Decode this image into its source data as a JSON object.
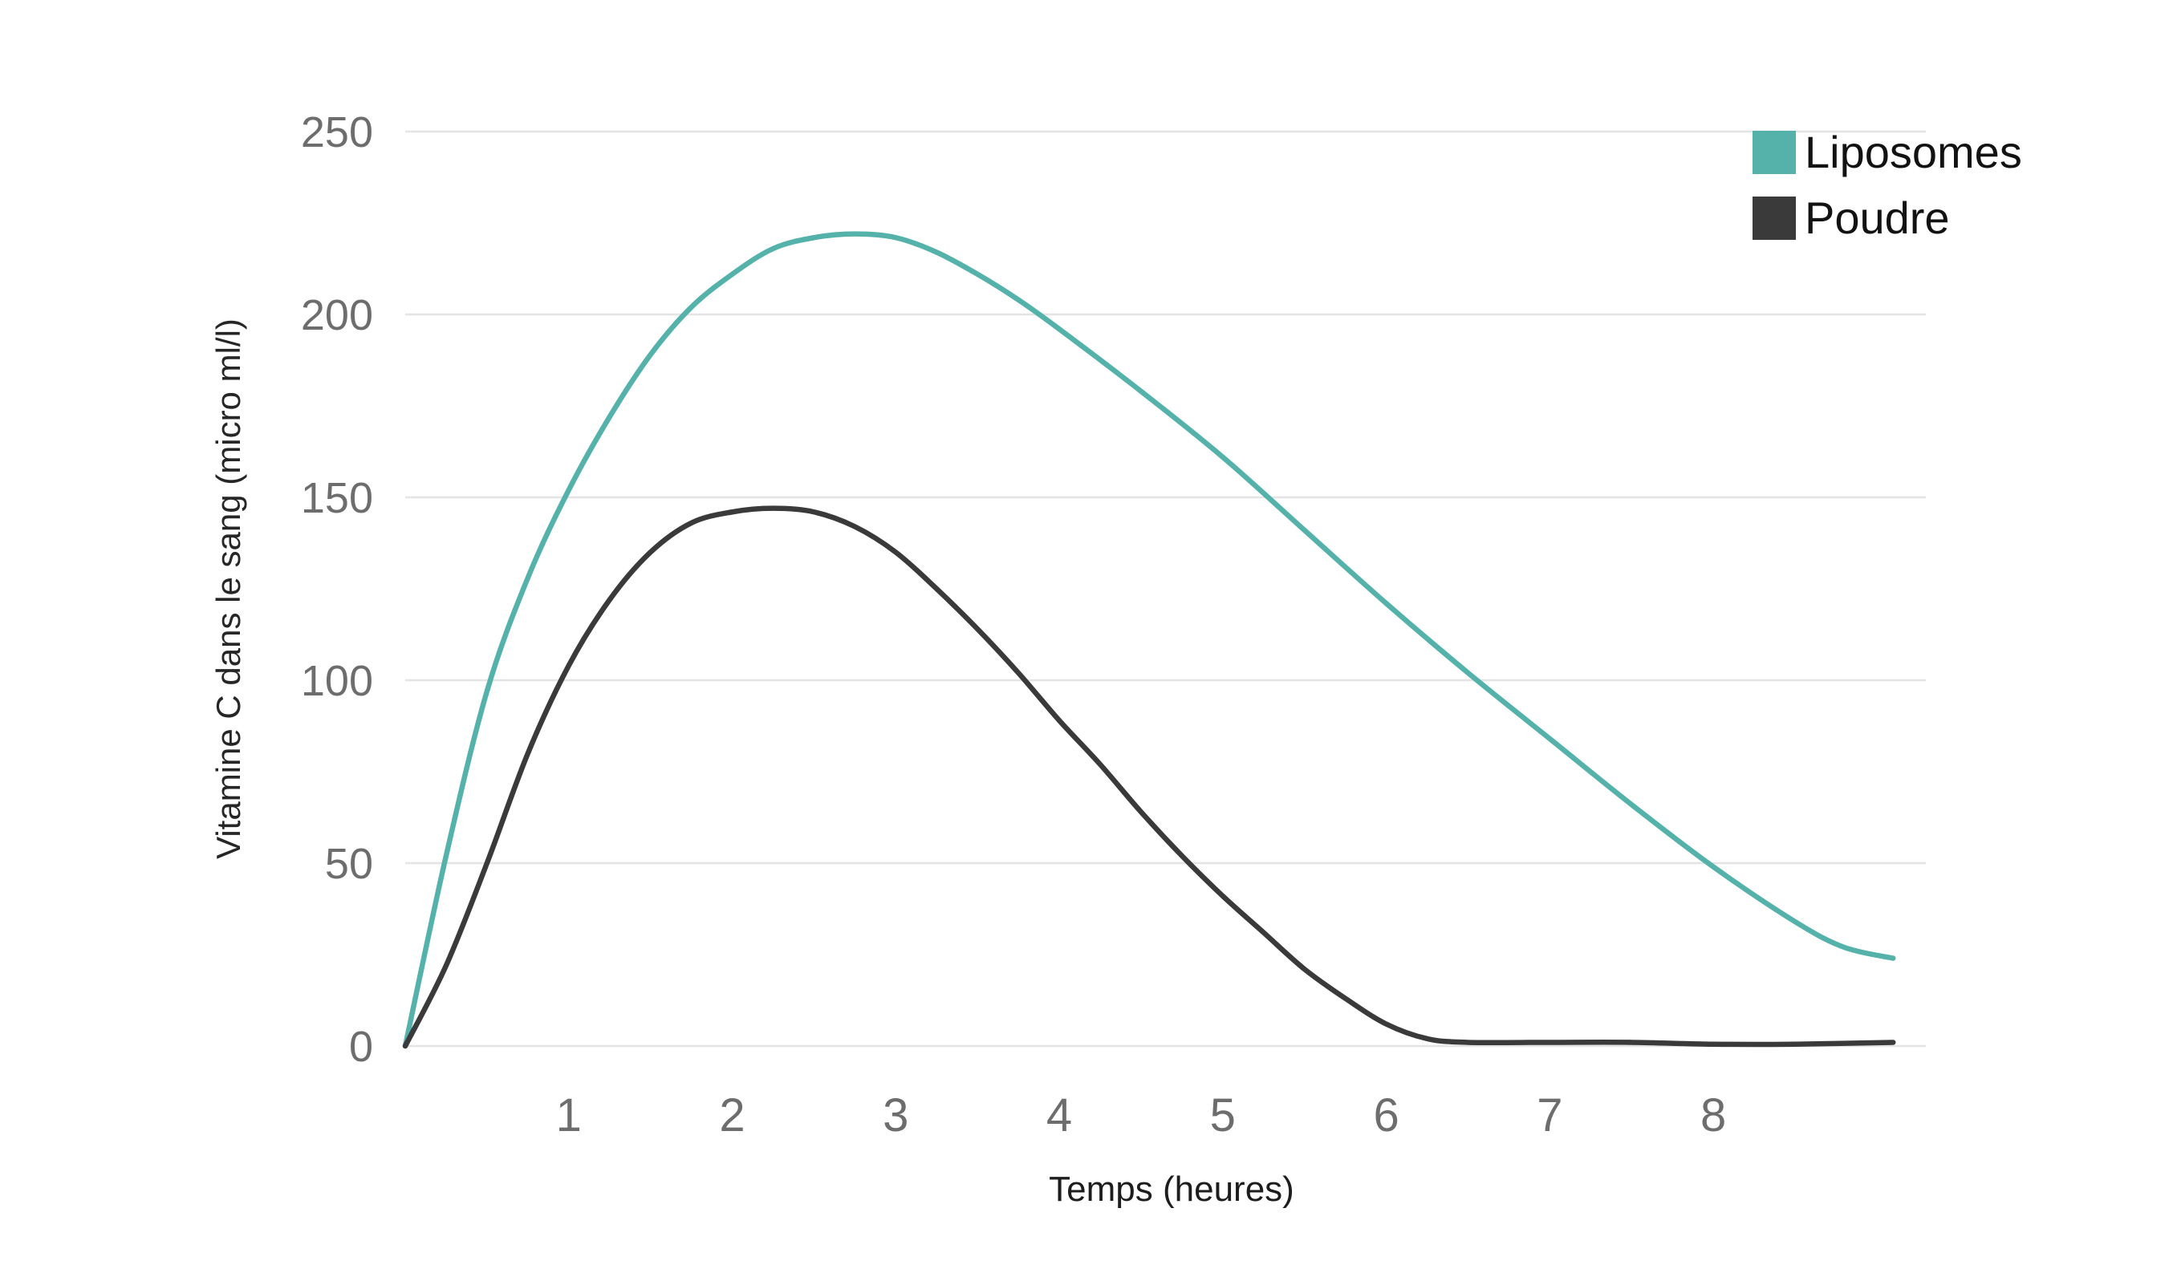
{
  "chart_data": {
    "type": "line",
    "title": "",
    "xlabel": "Temps (heures)",
    "ylabel": "Vitamine C dans le sang (micro ml/l)",
    "xlim": [
      0,
      9.3
    ],
    "ylim": [
      0,
      250
    ],
    "x_ticks": [
      1,
      2,
      3,
      4,
      5,
      6,
      7,
      8
    ],
    "y_ticks": [
      0,
      50,
      100,
      150,
      200,
      250
    ],
    "grid": "horizontal",
    "legend_position": "top-right",
    "series": [
      {
        "name": "Liposomes",
        "color": "#55b2ab",
        "x": [
          0,
          0.25,
          0.5,
          0.75,
          1,
          1.25,
          1.5,
          1.75,
          2,
          2.25,
          2.5,
          2.75,
          3,
          3.25,
          3.5,
          3.75,
          4,
          4.5,
          5,
          5.5,
          6,
          6.5,
          7,
          7.5,
          8,
          8.5,
          8.8,
          9.1
        ],
        "y": [
          0,
          52,
          97,
          128,
          152,
          172,
          189,
          202,
          211,
          218,
          221,
          222,
          221,
          217,
          211,
          204,
          196,
          179,
          161,
          141,
          121,
          102,
          84,
          66,
          49,
          34,
          27,
          24
        ]
      },
      {
        "name": "Poudre",
        "color": "#3a3a3a",
        "x": [
          0,
          0.25,
          0.5,
          0.75,
          1,
          1.25,
          1.5,
          1.75,
          2,
          2.25,
          2.5,
          2.75,
          3,
          3.25,
          3.5,
          3.75,
          4,
          4.25,
          4.5,
          4.75,
          5,
          5.25,
          5.5,
          5.75,
          6,
          6.25,
          6.5,
          7,
          7.5,
          8,
          8.5,
          9.1
        ],
        "y": [
          0,
          22,
          50,
          80,
          104,
          122,
          135,
          143,
          146,
          147,
          146,
          142,
          135,
          125,
          114,
          102,
          89,
          77,
          64,
          52,
          41,
          31,
          21,
          13,
          6,
          2,
          1,
          1,
          1,
          0.5,
          0.5,
          1
        ]
      }
    ],
    "colors": {
      "gridline": "#e4e4e4",
      "tick_label": "#6d6d6d",
      "axis_title": "#222222",
      "legend_text": "#121212",
      "background": "#ffffff"
    }
  }
}
